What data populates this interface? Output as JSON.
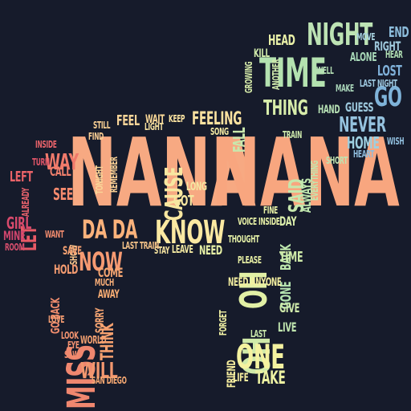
{
  "words": [
    {
      "text": "NANA",
      "color": "#f7a982"
    },
    {
      "text": "NANA",
      "color": "#f8a67f"
    },
    {
      "text": "TIME",
      "color": "#b4e2b0"
    },
    {
      "text": "NIGHT",
      "color": "#bde3b4"
    },
    {
      "text": "GO",
      "color": "#7fb3d9"
    },
    {
      "text": "NEVER",
      "color": "#95c2de"
    },
    {
      "text": "HOME",
      "color": "#9ecfe0"
    },
    {
      "text": "LOST",
      "color": "#7fb0d8"
    },
    {
      "text": "ALONE",
      "color": "#a8d8b8"
    },
    {
      "text": "HEAD",
      "color": "#e9f0a8"
    },
    {
      "text": "THING",
      "color": "#d7ecaa"
    },
    {
      "text": "FALL",
      "color": "#c9e7ac"
    },
    {
      "text": "SAID",
      "color": "#c6e7ad"
    },
    {
      "text": "DAY",
      "color": "#dcefac"
    },
    {
      "text": "ALWAYS",
      "color": "#bfe6ae"
    },
    {
      "text": "BACK",
      "color": "#bde6ad"
    },
    {
      "text": "GONE",
      "color": "#b4e3b0"
    },
    {
      "text": "TIME",
      "color": "#cfeaa9"
    },
    {
      "text": "OH",
      "color": "#e2f0a5"
    },
    {
      "text": "OH",
      "color": "#d0eaa9"
    },
    {
      "text": "ONE",
      "color": "#f4f2a0"
    },
    {
      "text": "TAKE",
      "color": "#ecf1a2"
    },
    {
      "text": "NEED",
      "color": "#e7f1a6"
    },
    {
      "text": "NEED ANYONE",
      "color": "#f4efa0"
    },
    {
      "text": "KNOW",
      "color": "#fbe9a2"
    },
    {
      "text": "CAUSE",
      "color": "#f8e7a0"
    },
    {
      "text": "FEELING",
      "color": "#fbe2a0"
    },
    {
      "text": "FEEL",
      "color": "#fcd79a"
    },
    {
      "text": "GOT",
      "color": "#f6e6a0"
    },
    {
      "text": "LEAVE",
      "color": "#f3e9a1"
    },
    {
      "text": "DA DA",
      "color": "#fbb27b"
    },
    {
      "text": "NOW",
      "color": "#f69a72"
    },
    {
      "text": "MISS",
      "color": "#f0876f"
    },
    {
      "text": "WILL",
      "color": "#f3976f"
    },
    {
      "text": "THINK",
      "color": "#f5a06f"
    },
    {
      "text": "WAY",
      "color": "#f07a6b"
    },
    {
      "text": "LET",
      "color": "#e85a66"
    },
    {
      "text": "LEFT",
      "color": "#ea6368"
    },
    {
      "text": "GIRL",
      "color": "#d84a6c"
    },
    {
      "text": "MINE",
      "color": "#cf456d"
    },
    {
      "text": "SEE",
      "color": "#f58a6e"
    },
    {
      "text": "CALL",
      "color": "#f07f6c"
    },
    {
      "text": "COME",
      "color": "#f6a672"
    },
    {
      "text": "HOLD",
      "color": "#f39b70"
    },
    {
      "text": "GO BACK",
      "color": "#ef8c6d"
    },
    {
      "text": "AWAY",
      "color": "#f8ad74"
    },
    {
      "text": "SORRY",
      "color": "#f6a572"
    },
    {
      "text": "WORLD",
      "color": "#f4a171"
    },
    {
      "text": "FRIEND",
      "color": "#f7ee9f"
    },
    {
      "text": "LIFE",
      "color": "#f6ee9f"
    },
    {
      "text": "GIVE",
      "color": "#cfe9aa"
    },
    {
      "text": "LIVE",
      "color": "#bfe4ae"
    },
    {
      "text": "END",
      "color": "#8cbcdb"
    },
    {
      "text": "RIGHT",
      "color": "#9ec8dc"
    },
    {
      "text": "MOVE",
      "color": "#a6d1de"
    },
    {
      "text": "WISH",
      "color": "#8fbddc"
    },
    {
      "text": "HEART",
      "color": "#8fbcdc"
    },
    {
      "text": "GUESS",
      "color": "#9dc9de"
    },
    {
      "text": "HAND",
      "color": "#b6e0b4"
    },
    {
      "text": "PLEASE",
      "color": "#e8f0a5"
    },
    {
      "text": "STAY",
      "color": "#f5e3a0"
    },
    {
      "text": "SHOW",
      "color": "#f6c38a"
    },
    {
      "text": "WAIT",
      "color": "#fbd998"
    },
    {
      "text": "STILL",
      "color": "#fbd194"
    },
    {
      "text": "SAVE",
      "color": "#f7a272"
    },
    {
      "text": "LONG",
      "color": "#f5e7a1"
    },
    {
      "text": "LIGHT",
      "color": "#f8e2a0"
    },
    {
      "text": "KEEP",
      "color": "#fbe3a1"
    },
    {
      "text": "FIND",
      "color": "#f9cd93"
    },
    {
      "text": "FINE",
      "color": "#e8f0a6"
    },
    {
      "text": "HEAR",
      "color": "#b0dfb3"
    },
    {
      "text": "LAST",
      "color": "#c9e8ab"
    },
    {
      "text": "LOOK",
      "color": "#f3946f"
    },
    {
      "text": "EYE",
      "color": "#f29170"
    },
    {
      "text": "SAW",
      "color": "#f08b6e"
    },
    {
      "text": "SAN DIEGO",
      "color": "#f5a872"
    },
    {
      "text": "WANT",
      "color": "#ee8a6d"
    },
    {
      "text": "INSIDE",
      "color": "#e8636a"
    },
    {
      "text": "ROOM",
      "color": "#d54e6d"
    },
    {
      "text": "TURN",
      "color": "#df5568"
    },
    {
      "text": "ALREADY",
      "color": "#e2606a"
    },
    {
      "text": "LAST TRAIN",
      "color": "#f4c288"
    },
    {
      "text": "THOUGHT",
      "color": "#e4f0a7"
    },
    {
      "text": "VOICE INSIDE",
      "color": "#e7f0a6"
    },
    {
      "text": "LAST NIGHT",
      "color": "#9cc6dd"
    },
    {
      "text": "KILL",
      "color": "#cfe9aa"
    },
    {
      "text": "MAKE",
      "color": "#a9d5b9"
    },
    {
      "text": "WELL",
      "color": "#b4deb4"
    },
    {
      "text": "SONG",
      "color": "#f3e9a2"
    },
    {
      "text": "GROWING",
      "color": "#d7ecaa"
    },
    {
      "text": "ANOTHER",
      "color": "#cfe9ab"
    },
    {
      "text": "EVERYTHING",
      "color": "#c3e5ad"
    },
    {
      "text": "SHORT",
      "color": "#bfe3b0"
    },
    {
      "text": "FORGET",
      "color": "#f0f0a3"
    },
    {
      "text": "TRAIN",
      "color": "#cde8ab"
    },
    {
      "text": "REMEMBER",
      "color": "#f8cf94"
    },
    {
      "text": "TONIGHT",
      "color": "#f9d597"
    },
    {
      "text": "MUCH",
      "color": "#f7ad77"
    },
    {
      "text": "LOVE",
      "color": "#f49c71"
    }
  ]
}
